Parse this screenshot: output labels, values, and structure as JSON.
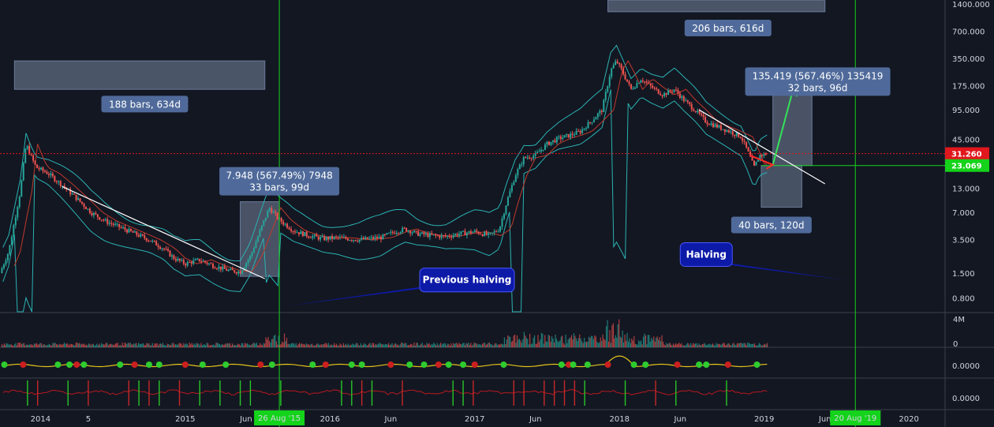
{
  "chart_data": {
    "type": "candlestick",
    "scale": "log",
    "ylim": [
      0.5,
      1500
    ],
    "x_tick_labels": [
      {
        "label": "2014",
        "t": 2014.0
      },
      {
        "label": "5",
        "t": 2014.33
      },
      {
        "label": "2015",
        "t": 2015.0
      },
      {
        "label": "Jun",
        "t": 2015.42
      },
      {
        "label": "2016",
        "t": 2016.0
      },
      {
        "label": "Jun",
        "t": 2016.42
      },
      {
        "label": "2017",
        "t": 2017.0
      },
      {
        "label": "Jun",
        "t": 2017.42
      },
      {
        "label": "2018",
        "t": 2018.0
      },
      {
        "label": "Jun",
        "t": 2018.42
      },
      {
        "label": "2019",
        "t": 2019.0
      },
      {
        "label": "Jun",
        "t": 2019.42
      },
      {
        "label": "2020",
        "t": 2020.0
      }
    ],
    "y_tick_labels": [
      "1400.000",
      "700.000",
      "350.000",
      "175.000",
      "95.000",
      "45.000",
      "23.069",
      "13.000",
      "7.000",
      "3.500",
      "1.500",
      "0.800"
    ],
    "y_tick_values": [
      1400,
      700,
      350,
      175,
      95,
      45,
      23.069,
      13,
      7,
      3.5,
      1.5,
      0.8
    ],
    "last_price": {
      "label": "31.260",
      "value": 31.26,
      "color": "#e0171d"
    },
    "level_price": {
      "label": "23.069",
      "value": 23.069,
      "color": "#15d31b"
    },
    "price_series": [
      [
        2013.72,
        1.5
      ],
      [
        2013.78,
        2.6
      ],
      [
        2013.86,
        12
      ],
      [
        2013.9,
        40
      ],
      [
        2013.93,
        30
      ],
      [
        2013.97,
        22
      ],
      [
        2014.05,
        19
      ],
      [
        2014.15,
        14
      ],
      [
        2014.25,
        10
      ],
      [
        2014.35,
        7
      ],
      [
        2014.45,
        5.6
      ],
      [
        2014.55,
        4.8
      ],
      [
        2014.65,
        4.1
      ],
      [
        2014.75,
        3.5
      ],
      [
        2014.85,
        2.8
      ],
      [
        2014.92,
        2.2
      ],
      [
        2015.0,
        1.9
      ],
      [
        2015.1,
        2.1
      ],
      [
        2015.2,
        1.8
      ],
      [
        2015.3,
        1.6
      ],
      [
        2015.38,
        1.55
      ],
      [
        2015.45,
        2.3
      ],
      [
        2015.52,
        4.5
      ],
      [
        2015.58,
        7.9
      ],
      [
        2015.65,
        5.8
      ],
      [
        2015.75,
        4.4
      ],
      [
        2015.85,
        3.9
      ],
      [
        2015.95,
        3.6
      ],
      [
        2016.05,
        3.7
      ],
      [
        2016.2,
        3.5
      ],
      [
        2016.35,
        3.7
      ],
      [
        2016.45,
        4.3
      ],
      [
        2016.52,
        4.6
      ],
      [
        2016.6,
        4.1
      ],
      [
        2016.7,
        3.9
      ],
      [
        2016.8,
        3.8
      ],
      [
        2016.9,
        4.1
      ],
      [
        2017.0,
        4.3
      ],
      [
        2017.1,
        3.9
      ],
      [
        2017.17,
        4.6
      ],
      [
        2017.22,
        9
      ],
      [
        2017.28,
        18
      ],
      [
        2017.34,
        28
      ],
      [
        2017.42,
        30
      ],
      [
        2017.5,
        40
      ],
      [
        2017.58,
        46
      ],
      [
        2017.66,
        50
      ],
      [
        2017.73,
        55
      ],
      [
        2017.8,
        70
      ],
      [
        2017.88,
        95
      ],
      [
        2017.94,
        260
      ],
      [
        2017.98,
        330
      ],
      [
        2018.02,
        250
      ],
      [
        2018.08,
        160
      ],
      [
        2018.15,
        210
      ],
      [
        2018.22,
        170
      ],
      [
        2018.3,
        140
      ],
      [
        2018.38,
        160
      ],
      [
        2018.45,
        120
      ],
      [
        2018.52,
        95
      ],
      [
        2018.6,
        70
      ],
      [
        2018.68,
        62
      ],
      [
        2018.76,
        55
      ],
      [
        2018.84,
        48
      ],
      [
        2018.88,
        35
      ],
      [
        2018.93,
        22
      ],
      [
        2018.97,
        30
      ],
      [
        2019.02,
        31.26
      ]
    ],
    "volume_axis_labels": [
      "4M",
      "0"
    ],
    "oscillator_axis_labels": [
      "0.0000",
      "0.0000"
    ],
    "annotations": {
      "box_left_top_label": "188 bars, 634d",
      "box_mid_label_line1": "7.948 (567.49%) 7948",
      "box_mid_label_line2": "33 bars, 99d",
      "box_top_right_label": "206 bars, 616d",
      "box_right_label_line1": "135.419 (567.46%) 135419",
      "box_right_label_line2": "32 bars, 96d",
      "box_down_label": "40 bars, 120d",
      "callout_previous_halving": "Previous halving",
      "callout_halving": "Halving",
      "date_tag_left": "26 Aug '15",
      "date_tag_right": "20 Aug '19"
    },
    "colors": {
      "background": "#131722",
      "up_candle": "#26a69a",
      "down_candle": "#ef5350",
      "bollinger": "#2ab3b3",
      "ma": "#c0392b",
      "halving_line": "#15d31b",
      "measure_box": "#4f6a9a",
      "callout": "#0d1aa8",
      "last_price_line": "#e0171d"
    }
  }
}
